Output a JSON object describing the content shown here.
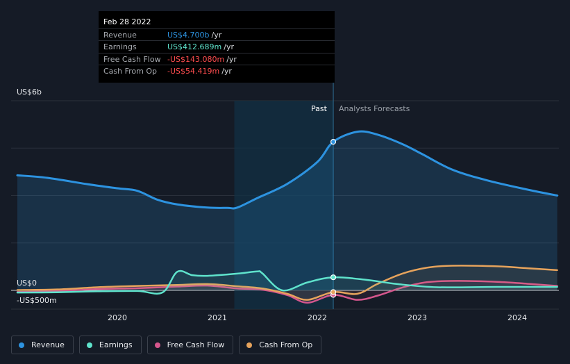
{
  "chart_data": {
    "type": "area",
    "y_axis_labels": [
      "US$6b",
      "US$0",
      "-US$500m"
    ],
    "ylim": [
      -500,
      6000
    ],
    "x_ticks": [
      "2020",
      "2021",
      "2022",
      "2023",
      "2024"
    ],
    "x_tick_years": [
      2020,
      2021,
      2022,
      2023,
      2024
    ],
    "region_labels": {
      "past": "Past",
      "forecast": "Analysts Forecasts"
    },
    "highlight_year_start": 2021.17,
    "divider_year": 2022.16,
    "grid": true,
    "legend_position": "bottom",
    "series": [
      {
        "name": "Revenue",
        "color": "#2d93e0",
        "fill": true,
        "points": [
          [
            2019.0,
            3640
          ],
          [
            2019.3,
            3560
          ],
          [
            2019.7,
            3360
          ],
          [
            2020.0,
            3230
          ],
          [
            2020.2,
            3150
          ],
          [
            2020.4,
            2870
          ],
          [
            2020.6,
            2720
          ],
          [
            2020.9,
            2620
          ],
          [
            2021.1,
            2610
          ],
          [
            2021.2,
            2620
          ],
          [
            2021.4,
            2920
          ],
          [
            2021.7,
            3370
          ],
          [
            2022.0,
            4060
          ],
          [
            2022.16,
            4700
          ],
          [
            2022.4,
            5020
          ],
          [
            2022.6,
            4930
          ],
          [
            2022.85,
            4630
          ],
          [
            2023.05,
            4310
          ],
          [
            2023.35,
            3820
          ],
          [
            2023.7,
            3480
          ],
          [
            2024.1,
            3190
          ],
          [
            2024.4,
            3000
          ]
        ]
      },
      {
        "name": "Earnings",
        "color": "#5fe3cc",
        "fill": false,
        "points": [
          [
            2019.0,
            -70
          ],
          [
            2019.4,
            -60
          ],
          [
            2019.8,
            -30
          ],
          [
            2020.2,
            -20
          ],
          [
            2020.45,
            -70
          ],
          [
            2020.6,
            590
          ],
          [
            2020.75,
            480
          ],
          [
            2020.9,
            460
          ],
          [
            2021.2,
            530
          ],
          [
            2021.4,
            600
          ],
          [
            2021.45,
            540
          ],
          [
            2021.65,
            0
          ],
          [
            2021.9,
            250
          ],
          [
            2022.16,
            413
          ],
          [
            2022.5,
            330
          ],
          [
            2022.8,
            200
          ],
          [
            2023.2,
            100
          ],
          [
            2023.8,
            110
          ],
          [
            2024.4,
            110
          ]
        ]
      },
      {
        "name": "Free Cash Flow",
        "color": "#d5568d",
        "fill": false,
        "points": [
          [
            2019.0,
            -50
          ],
          [
            2019.4,
            -20
          ],
          [
            2019.8,
            40
          ],
          [
            2020.2,
            70
          ],
          [
            2020.6,
            120
          ],
          [
            2020.9,
            150
          ],
          [
            2021.2,
            60
          ],
          [
            2021.45,
            20
          ],
          [
            2021.7,
            -150
          ],
          [
            2021.9,
            -390
          ],
          [
            2022.16,
            -143
          ],
          [
            2022.4,
            -300
          ],
          [
            2022.6,
            -170
          ],
          [
            2022.85,
            90
          ],
          [
            2023.1,
            260
          ],
          [
            2023.4,
            300
          ],
          [
            2023.8,
            270
          ],
          [
            2024.1,
            210
          ],
          [
            2024.4,
            140
          ]
        ]
      },
      {
        "name": "Cash From Op",
        "color": "#e6a35c",
        "fill": false,
        "points": [
          [
            2019.0,
            10
          ],
          [
            2019.4,
            30
          ],
          [
            2019.8,
            100
          ],
          [
            2020.2,
            140
          ],
          [
            2020.6,
            170
          ],
          [
            2020.9,
            200
          ],
          [
            2021.2,
            130
          ],
          [
            2021.45,
            60
          ],
          [
            2021.7,
            -110
          ],
          [
            2021.9,
            -300
          ],
          [
            2022.16,
            -54
          ],
          [
            2022.4,
            -110
          ],
          [
            2022.6,
            200
          ],
          [
            2022.85,
            530
          ],
          [
            2023.1,
            720
          ],
          [
            2023.35,
            780
          ],
          [
            2023.8,
            760
          ],
          [
            2024.1,
            700
          ],
          [
            2024.4,
            640
          ]
        ]
      }
    ]
  },
  "tooltip": {
    "date": "Feb 28 2022",
    "rows": [
      {
        "label": "Revenue",
        "value": "US$4.700b",
        "unit": "/yr",
        "color": "#2d93e0"
      },
      {
        "label": "Earnings",
        "value": "US$412.689m",
        "unit": "/yr",
        "color": "#5fe3cc"
      },
      {
        "label": "Free Cash Flow",
        "value": "-US$143.080m",
        "unit": "/yr",
        "color": "#ff4d4f"
      },
      {
        "label": "Cash From Op",
        "value": "-US$54.419m",
        "unit": "/yr",
        "color": "#ff4d4f"
      }
    ]
  },
  "legend": [
    {
      "label": "Revenue",
      "color": "#2d93e0"
    },
    {
      "label": "Earnings",
      "color": "#5fe3cc"
    },
    {
      "label": "Free Cash Flow",
      "color": "#d5568d"
    },
    {
      "label": "Cash From Op",
      "color": "#e6a35c"
    }
  ]
}
